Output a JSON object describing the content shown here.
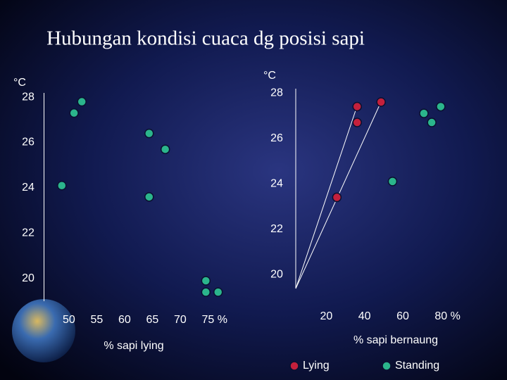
{
  "title": "Hubungan kondisi cuaca dg posisi sapi",
  "chart_data": [
    {
      "type": "scatter",
      "xlabel": "% sapi lying",
      "ylabel": "°C",
      "xlim": [
        45.5,
        78
      ],
      "ylim": [
        19,
        28.5
      ],
      "xticks": [
        50,
        55,
        60,
        65,
        70,
        {
          "value": 75,
          "label": "75 %"
        }
      ],
      "yticks": [
        20,
        22,
        24,
        26,
        28
      ],
      "series": [
        {
          "color": "#2bb58c",
          "x": [
            52.3,
            50.9,
            64.4,
            67.3,
            48.7,
            64.4,
            74.6,
            74.6,
            76.8
          ],
          "values": [
            27.8,
            27.3,
            26.4,
            25.7,
            24.1,
            23.6,
            19.9,
            19.4,
            19.4
          ]
        }
      ]
    },
    {
      "type": "scatter",
      "xlabel": "% sapi bernaung",
      "ylabel": "°C",
      "xlim": [
        4,
        85
      ],
      "ylim": [
        19.4,
        28.5
      ],
      "xticks": [
        20,
        40,
        60,
        {
          "value": 80,
          "label": "80 %"
        }
      ],
      "yticks": [
        20,
        22,
        24,
        26,
        28
      ],
      "series": [
        {
          "name": "Lying",
          "color": "#c4203c",
          "x": [
            36.1,
            36.1,
            48.6,
            25.5
          ],
          "values": [
            27.4,
            26.7,
            27.6,
            23.4
          ]
        },
        {
          "name": "Standing",
          "color": "#2bb58c",
          "x": [
            71.0,
            79.8,
            75.1,
            54.6
          ],
          "values": [
            27.1,
            27.4,
            26.7,
            24.1
          ]
        }
      ]
    }
  ]
}
